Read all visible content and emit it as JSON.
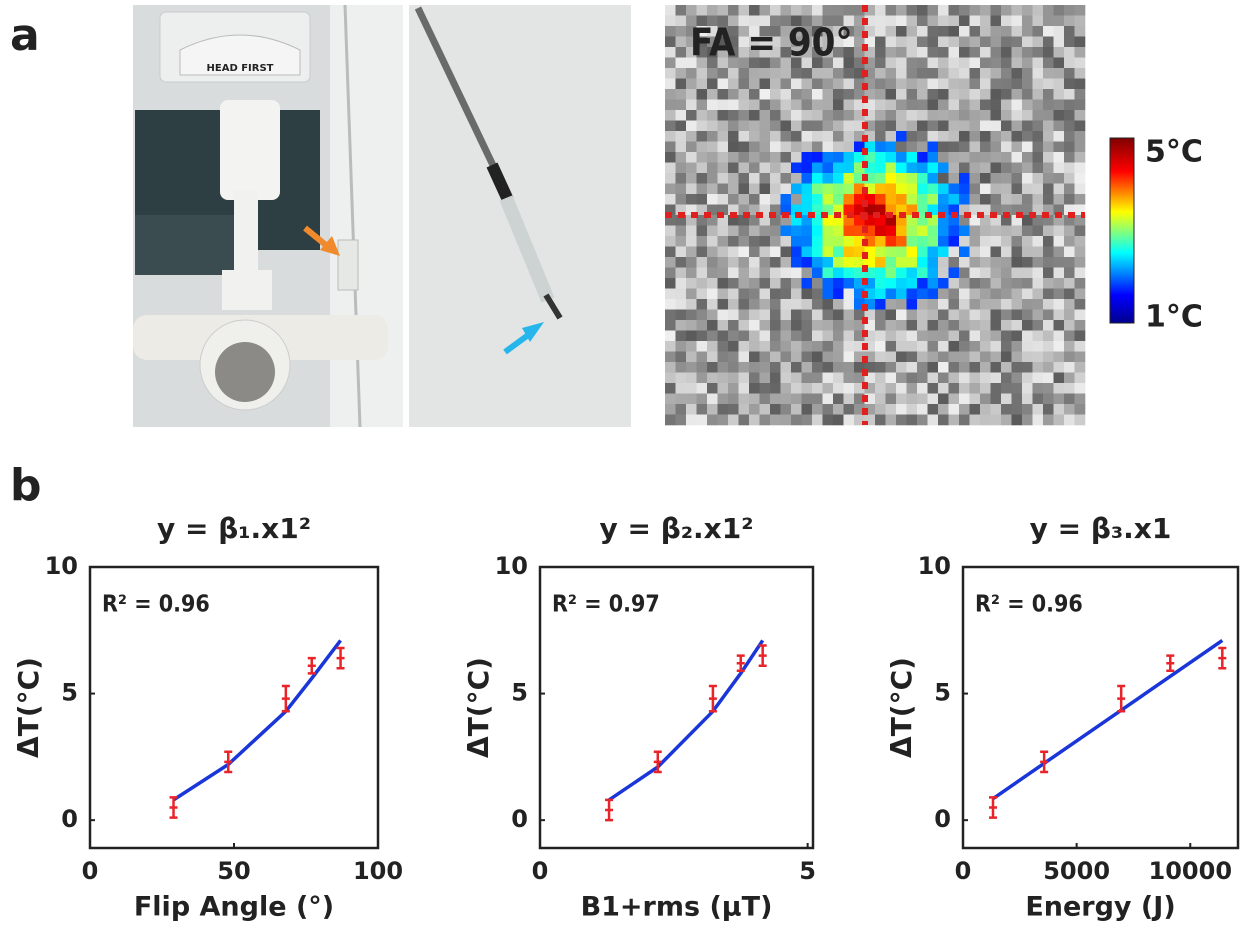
{
  "panel_labels": [
    "a",
    "b"
  ],
  "photo_text": "HEAD FIRST",
  "heatmap": {
    "title": "FA = 90°",
    "colorbar_max": "5°C",
    "colorbar_min": "1°C"
  },
  "chart_data": [
    {
      "type": "scatter",
      "title": "y = β₁.x1²",
      "annotation": "R² = 0.96",
      "x_label": "Flip Angle (°)",
      "y_label": "ΔT(°C)",
      "xlim": [
        0,
        100
      ],
      "xticks": [
        0,
        50,
        100
      ],
      "ylim": [
        -1.1,
        10
      ],
      "yticks": [
        0,
        5,
        10
      ],
      "series": [
        {
          "type": "line",
          "color": "#1a35d8",
          "x": [
            29,
            48,
            68,
            77,
            87
          ],
          "values": [
            0.8,
            2.2,
            4.3,
            5.6,
            7.1
          ]
        },
        {
          "type": "errorbar",
          "color": "#e8242a",
          "x": [
            29,
            48,
            68,
            77,
            87
          ],
          "values": [
            0.5,
            2.3,
            4.8,
            6.1,
            6.4
          ],
          "errors": [
            0.4,
            0.4,
            0.5,
            0.3,
            0.4
          ]
        }
      ]
    },
    {
      "type": "scatter",
      "title": "y = β₂.x1²",
      "annotation": "R² = 0.97",
      "x_label": "B1+rms (μT)",
      "y_label": "ΔT(°C)",
      "xlim": [
        0,
        5.1
      ],
      "xticks": [
        0,
        5
      ],
      "ylim": [
        -1.1,
        10
      ],
      "yticks": [
        0,
        5,
        10
      ],
      "series": [
        {
          "type": "line",
          "color": "#1a35d8",
          "x": [
            1.29,
            2.2,
            3.23,
            3.75,
            4.16
          ],
          "values": [
            0.8,
            2.1,
            4.3,
            5.8,
            7.1
          ]
        },
        {
          "type": "errorbar",
          "color": "#e8242a",
          "x": [
            1.29,
            2.2,
            3.23,
            3.75,
            4.16
          ],
          "values": [
            0.4,
            2.3,
            4.8,
            6.2,
            6.5
          ],
          "errors": [
            0.4,
            0.4,
            0.5,
            0.3,
            0.4
          ]
        }
      ]
    },
    {
      "type": "scatter",
      "title": "y = β₃.x1",
      "annotation": "R² = 0.96",
      "x_label": "Energy (J)",
      "y_label": "ΔT(°C)",
      "xlim": [
        0,
        12100
      ],
      "xticks": [
        0,
        5000,
        10000
      ],
      "ylim": [
        -1.1,
        10
      ],
      "yticks": [
        0,
        5,
        10
      ],
      "series": [
        {
          "type": "line",
          "color": "#1a35d8",
          "x": [
            1320,
            11410
          ],
          "values": [
            0.85,
            7.1
          ]
        },
        {
          "type": "errorbar",
          "color": "#e8242a",
          "x": [
            1320,
            3570,
            6960,
            9120,
            11410
          ],
          "values": [
            0.5,
            2.3,
            4.8,
            6.2,
            6.4
          ],
          "errors": [
            0.4,
            0.4,
            0.5,
            0.3,
            0.4
          ]
        }
      ]
    }
  ]
}
